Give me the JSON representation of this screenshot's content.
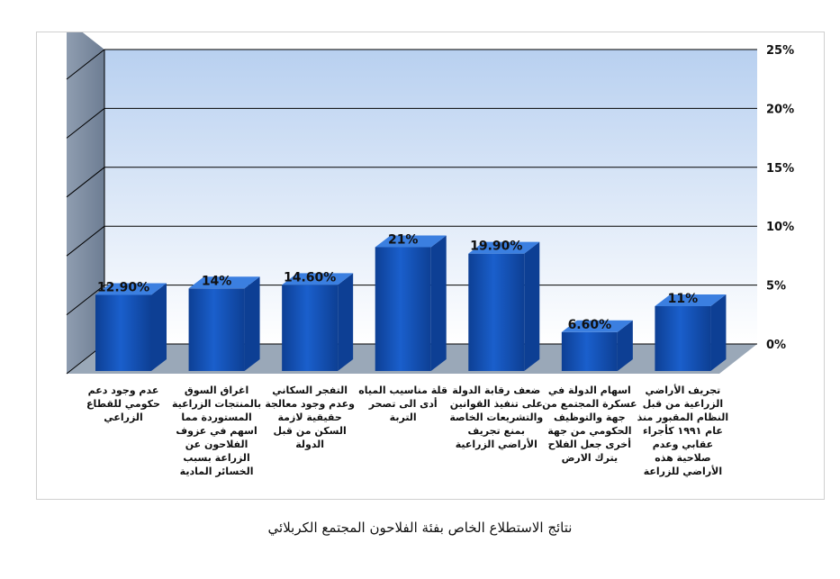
{
  "caption": "نتائج الاستطلاع الخاص بفئة الفلاحون المجتمع الكربلائي",
  "colors": {
    "bar_front": "#1a5fcc",
    "bar_side": "#0d3f94",
    "bar_top": "#3b7fe0",
    "back_wall_top": "#b8d0f0",
    "back_wall_bottom": "#ffffff",
    "side_wall": "#7f8ea3",
    "floor": "#9aa8b8",
    "grid": "#000000"
  },
  "chart_data": {
    "type": "bar",
    "style": "3d-column",
    "categories": [
      "عدم وجود دعم حكومي للقطاع الزراعي",
      "اغراق السوق بالمنتجات الزراعية المستوردة مما اسهم في عزوف الفلاحون عن الزراعة بسبب الخسائر المادية",
      "التفجر السكاني وعدم وجود معالجة حقيقية لازمة السكن من قبل الدولة",
      "قلة مناسيب المياه أدى الى تصحر التربة",
      "ضعف رقابة الدولة على تنفيذ القوانين والتشريعات الخاصة بمنع تجريف الأراضي الزراعية",
      "اسهام الدولة في عسكرة المجتمع من جهة والتوظيف الحكومي من جهة أخرى جعل الفلاح يترك الارض",
      "تجريف الأراضي الزراعية من قبل النظام المقبور منذ عام ١٩٩١ كأجراء عقابي وعدم صلاحية هذه الأراضي للزراعة"
    ],
    "values": [
      12.9,
      14,
      14.6,
      21,
      19.9,
      6.6,
      11
    ],
    "data_labels": [
      "12.90%",
      "14%",
      "14.60%",
      "21%",
      "19.90%",
      "6.60%",
      "11%"
    ],
    "y_ticks": [
      "0%",
      "5%",
      "10%",
      "15%",
      "20%",
      "25%"
    ],
    "ylim": [
      0,
      25
    ],
    "y_axis_position": "right",
    "grid": true,
    "legend": "none"
  }
}
